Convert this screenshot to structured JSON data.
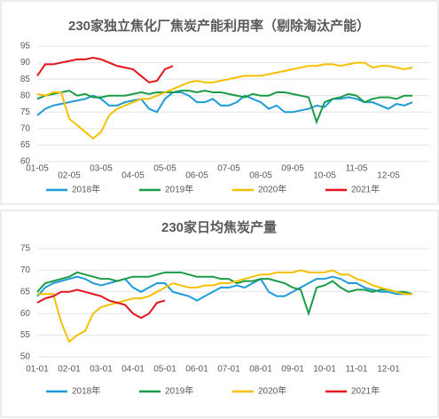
{
  "chart_data": [
    {
      "type": "line",
      "title": "230家独立焦化厂焦炭产能利用率（剔除淘汰产能）",
      "categories": [
        "01-05",
        null,
        null,
        null,
        "02-05",
        null,
        null,
        null,
        "03-05",
        null,
        null,
        null,
        "04-05",
        null,
        null,
        null,
        "05-05",
        null,
        null,
        null,
        "06-05",
        null,
        null,
        null,
        "07-05",
        null,
        null,
        null,
        "08-05",
        null,
        null,
        null,
        "09-05",
        null,
        null,
        null,
        "10-05",
        null,
        null,
        null,
        "11-05",
        null,
        null,
        null,
        "12-05",
        null,
        null,
        null
      ],
      "ylim": [
        60,
        95
      ],
      "yticks": [
        60,
        65,
        70,
        75,
        80,
        85,
        90,
        95
      ],
      "grid": true,
      "series": [
        {
          "name": "2018年",
          "color": "#1f9bd7",
          "values": [
            74,
            76,
            77,
            77.5,
            78,
            78.5,
            79,
            80,
            79,
            77,
            77,
            78,
            78.5,
            79,
            76,
            75,
            79,
            81,
            81,
            80,
            78,
            78,
            79,
            77,
            77,
            78,
            80,
            79,
            78,
            76,
            77,
            75,
            75,
            75.5,
            76,
            77,
            76.5,
            79,
            79,
            79.5,
            79,
            78,
            78,
            77,
            76,
            77.5,
            77,
            78
          ]
        },
        {
          "name": "2019年",
          "color": "#1a9b48",
          "values": [
            79,
            80,
            80.5,
            81,
            81.5,
            80,
            80.5,
            79.5,
            79.5,
            80,
            80,
            80,
            80.5,
            81,
            80.5,
            81,
            81,
            81,
            81.5,
            81.5,
            81,
            81.5,
            81,
            81,
            80.5,
            80,
            79.5,
            80.5,
            80,
            80,
            81,
            81,
            80.5,
            80,
            79.5,
            72,
            78,
            79,
            79.5,
            80.5,
            80,
            78,
            79,
            79.5,
            79.5,
            79,
            80,
            80
          ]
        },
        {
          "name": "2020年",
          "color": "#f5c000",
          "values": [
            80.5,
            80,
            81,
            81,
            73,
            71,
            69,
            67,
            69,
            74,
            76,
            77,
            78,
            79,
            79,
            80,
            81,
            82,
            83,
            84,
            84.5,
            84,
            84,
            84.5,
            85,
            85.5,
            86,
            86,
            86,
            86.5,
            87,
            87.5,
            88,
            88.5,
            89,
            89,
            89.5,
            89.5,
            89,
            89.5,
            90,
            90,
            88.5,
            89,
            89,
            88.5,
            88,
            88.5
          ]
        },
        {
          "name": "2021年",
          "color": "#e3151a",
          "values": [
            86,
            89.5,
            89.5,
            90,
            90.5,
            91,
            91,
            91.5,
            91,
            90,
            89,
            88.5,
            88,
            86,
            84,
            84.5,
            88,
            89,
            null,
            null,
            null,
            null,
            null,
            null,
            null,
            null,
            null,
            null,
            null,
            null,
            null,
            null,
            null,
            null,
            null,
            null,
            null,
            null,
            null,
            null,
            null,
            null,
            null,
            null,
            null,
            null,
            null,
            null
          ]
        }
      ]
    },
    {
      "type": "line",
      "title": "230家日均焦炭产量",
      "categories": [
        "01-01",
        null,
        null,
        null,
        "02-01",
        null,
        null,
        null,
        "03-01",
        null,
        null,
        null,
        "04-01",
        null,
        null,
        null,
        "05-01",
        null,
        null,
        null,
        "06-01",
        null,
        null,
        null,
        "07-01",
        null,
        null,
        null,
        "08-01",
        null,
        null,
        null,
        "09-01",
        null,
        null,
        null,
        "10-01",
        null,
        null,
        null,
        "11-01",
        null,
        null,
        null,
        "12-01",
        null,
        null,
        null
      ],
      "ylim": [
        50,
        75
      ],
      "yticks": [
        50,
        55,
        60,
        65,
        70,
        75
      ],
      "grid": true,
      "series": [
        {
          "name": "2018年",
          "color": "#1f9bd7",
          "values": [
            64,
            66,
            67,
            67.5,
            68,
            68.5,
            68,
            67,
            66.5,
            67,
            67.5,
            68,
            66,
            65,
            66,
            67,
            67,
            65,
            64.5,
            64,
            63,
            64,
            65,
            66,
            66,
            66.5,
            66,
            67,
            68,
            65,
            64,
            64,
            65,
            66,
            67,
            68,
            68,
            68.5,
            68,
            67,
            67,
            66,
            65.5,
            65,
            65,
            64.5,
            64.5,
            64.5
          ]
        },
        {
          "name": "2019年",
          "color": "#1a9b48",
          "values": [
            65,
            67,
            67.5,
            68,
            68.5,
            69.5,
            69,
            68.5,
            68,
            68,
            67.5,
            68,
            68.5,
            68.5,
            68.5,
            69,
            69.5,
            69.5,
            69.5,
            69,
            68.5,
            68.5,
            68.5,
            68,
            68,
            67,
            67.5,
            67.5,
            68,
            68,
            67.5,
            67,
            66,
            65.5,
            60,
            66,
            66.5,
            67.5,
            66,
            65,
            65.5,
            65.5,
            65,
            65.5,
            65.5,
            65,
            65,
            64.5
          ]
        },
        {
          "name": "2020年",
          "color": "#f5c000",
          "values": [
            64.5,
            64.5,
            64.5,
            58,
            53.5,
            55,
            56,
            60,
            61.5,
            62,
            62.5,
            63,
            63.5,
            63.5,
            64,
            65,
            66,
            67,
            66.5,
            66,
            66,
            66.5,
            66.5,
            67,
            67,
            67.5,
            68,
            68.5,
            69,
            69,
            69.5,
            69.5,
            69.5,
            70,
            69.5,
            69.5,
            69.5,
            70,
            69,
            69,
            68,
            67.5,
            66.5,
            66,
            65.5,
            65,
            64.5,
            64.5
          ]
        },
        {
          "name": "2021年",
          "color": "#e3151a",
          "values": [
            62.5,
            63.5,
            64,
            65,
            65,
            65.5,
            65,
            64.5,
            64,
            63,
            62.5,
            62,
            60,
            59,
            60,
            62.5,
            63,
            null,
            null,
            null,
            null,
            null,
            null,
            null,
            null,
            null,
            null,
            null,
            null,
            null,
            null,
            null,
            null,
            null,
            null,
            null,
            null,
            null,
            null,
            null,
            null,
            null,
            null,
            null,
            null,
            null,
            null,
            null
          ]
        }
      ]
    }
  ]
}
